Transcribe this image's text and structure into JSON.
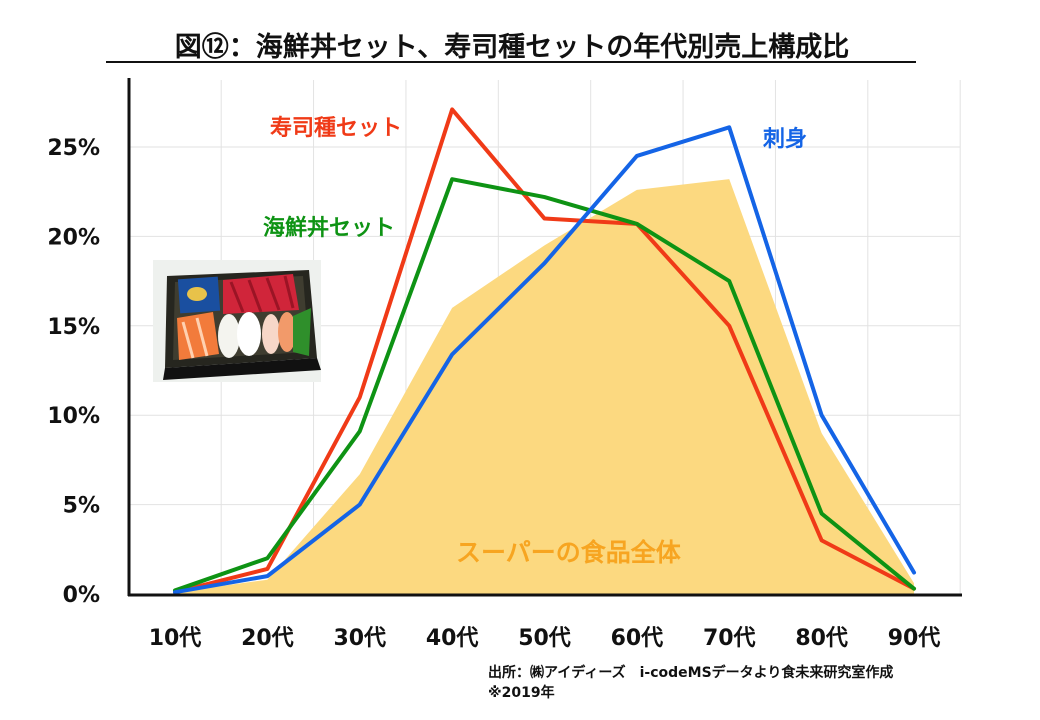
{
  "chart_data": {
    "type": "line",
    "title": "図⑫：海鮮丼セット、寿司種セットの年代別売上構成比",
    "categories": [
      "10代",
      "20代",
      "30代",
      "40代",
      "50代",
      "60代",
      "70代",
      "80代",
      "90代"
    ],
    "y_ticks": [
      "0%",
      "5%",
      "10%",
      "15%",
      "20%",
      "25%"
    ],
    "ylim": [
      0,
      27
    ],
    "grid": true,
    "series": [
      {
        "name": "寿司種セット",
        "kind": "line",
        "color": "#f03a17",
        "values": [
          0.1,
          1.4,
          11.0,
          27.1,
          21.0,
          20.7,
          15.0,
          3.0,
          0.3
        ]
      },
      {
        "name": "海鮮丼セット",
        "kind": "line",
        "color": "#0e9314",
        "values": [
          0.2,
          2.0,
          9.1,
          23.2,
          22.2,
          20.7,
          17.5,
          4.5,
          0.3
        ]
      },
      {
        "name": "刺身",
        "kind": "line",
        "color": "#1464e6",
        "values": [
          0.1,
          1.0,
          5.0,
          13.4,
          18.5,
          24.5,
          26.1,
          10.0,
          1.2
        ]
      },
      {
        "name": "スーパーの食品全体",
        "kind": "area",
        "color": "#fcd980",
        "label_color": "#f7a521",
        "values": [
          0.1,
          0.8,
          6.7,
          16.0,
          19.5,
          22.6,
          23.2,
          9.0,
          0.6
        ]
      }
    ],
    "source_line1": "出所：㈱アイディーズ　i-codeMSデータより食未来研究室作成",
    "source_line2": "※2019年"
  },
  "image": {
    "icon": "sashimi-tray-photo"
  }
}
